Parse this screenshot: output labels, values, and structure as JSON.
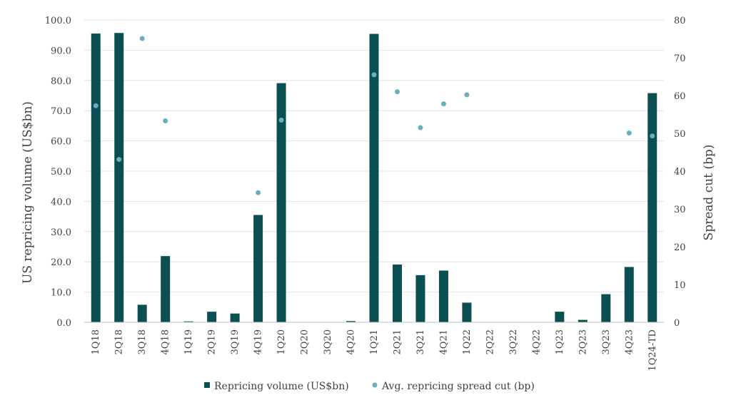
{
  "chart_data": {
    "type": "bar",
    "categories": [
      "1Q18",
      "2Q18",
      "3Q18",
      "4Q18",
      "1Q19",
      "2Q19",
      "3Q19",
      "4Q19",
      "1Q20",
      "2Q20",
      "3Q20",
      "4Q20",
      "1Q21",
      "2Q21",
      "3Q21",
      "4Q21",
      "1Q22",
      "2Q22",
      "3Q22",
      "4Q22",
      "1Q23",
      "2Q23",
      "3Q23",
      "4Q23",
      "1Q24-TD"
    ],
    "series": [
      {
        "name": "Repricing volume (US$bn)",
        "type": "bar",
        "axis": "left",
        "color": "#0b4f52",
        "values": [
          95.5,
          95.7,
          5.8,
          21.9,
          0.3,
          3.5,
          2.9,
          35.5,
          79.1,
          0,
          0,
          0.4,
          95.4,
          19.1,
          15.6,
          17.1,
          6.5,
          0,
          0,
          0,
          3.5,
          0.8,
          9.3,
          18.3,
          75.8
        ]
      },
      {
        "name": "Avg. repricing spread cut (bp)",
        "type": "scatter",
        "axis": "right",
        "color": "#6aaec0",
        "values": [
          57.3,
          43.1,
          75.1,
          53.3,
          null,
          null,
          null,
          34.3,
          53.5,
          null,
          null,
          null,
          65.5,
          61.0,
          51.5,
          57.8,
          60.2,
          null,
          null,
          null,
          null,
          null,
          null,
          50.1,
          49.3
        ]
      }
    ],
    "ylabel": "US repricing volume (US$bn)",
    "y2label": "Spread cut (bp)",
    "ylim": [
      0,
      100
    ],
    "y2lim": [
      0,
      80
    ],
    "yticks": [
      "0.0",
      "10.0",
      "20.0",
      "30.0",
      "40.0",
      "50.0",
      "60.0",
      "70.0",
      "80.0",
      "90.0",
      "100.0"
    ],
    "y2ticks": [
      "0",
      "10",
      "20",
      "30",
      "40",
      "50",
      "60",
      "70",
      "80"
    ],
    "grid": true,
    "legend_position": "bottom"
  }
}
